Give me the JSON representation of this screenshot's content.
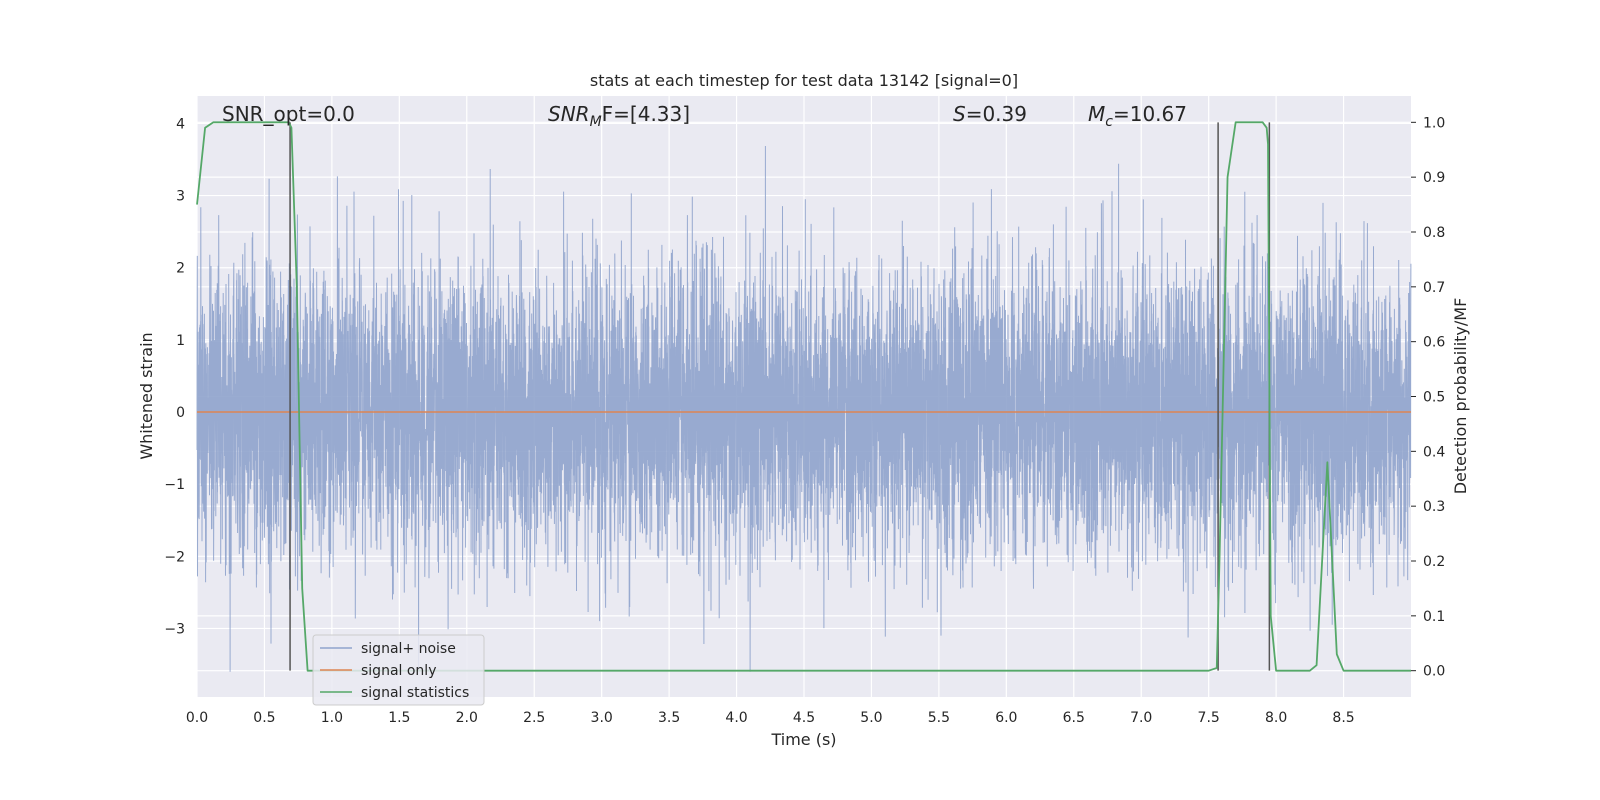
{
  "chart_data": {
    "type": "line",
    "title": "stats at each timestep for test data 13142 [signal=0]",
    "xlabel": "Time (s)",
    "ylabel": "Whitened strain",
    "y2label": "Detection probability/MF",
    "xlim": [
      0,
      9.0
    ],
    "ylim": [
      -3.95,
      4.38
    ],
    "y2lim": [
      -0.048,
      1.048
    ],
    "x_ticks": [
      0.0,
      0.5,
      1.0,
      1.5,
      2.0,
      2.5,
      3.0,
      3.5,
      4.0,
      4.5,
      5.0,
      5.5,
      6.0,
      6.5,
      7.0,
      7.5,
      8.0,
      8.5
    ],
    "x_tick_labels": [
      "0.0",
      "0.5",
      "1.0",
      "1.5",
      "2.0",
      "2.5",
      "3.0",
      "3.5",
      "4.0",
      "4.5",
      "5.0",
      "5.5",
      "6.0",
      "6.5",
      "7.0",
      "7.5",
      "8.0",
      "8.5"
    ],
    "y_ticks": [
      -3,
      -2,
      -1,
      0,
      1,
      2,
      3,
      4
    ],
    "y_tick_labels": [
      "−3",
      "−2",
      "−1",
      "0",
      "1",
      "2",
      "3",
      "4"
    ],
    "y2_ticks": [
      0.0,
      0.1,
      0.2,
      0.3,
      0.4,
      0.5,
      0.6,
      0.7,
      0.8,
      0.9,
      1.0
    ],
    "y2_tick_labels": [
      "0.0",
      "0.1",
      "0.2",
      "0.3",
      "0.4",
      "0.5",
      "0.6",
      "0.7",
      "0.8",
      "0.9",
      "1.0"
    ],
    "grid": true,
    "legend_position": "lower-left",
    "annotations": {
      "snr_opt": "SNR_opt=0.0",
      "snr_mf_base": "SNR",
      "snr_mf_sub": "M",
      "snr_mf_rest": "F=[4.33]",
      "s_sym": "S",
      "s_rest": "=0.39",
      "mc_sym": "M",
      "mc_sub": "c",
      "mc_rest": "=10.67"
    },
    "series": [
      {
        "name": "signal+ noise",
        "color": "#8fa3cc",
        "style": "noise",
        "sample_rate": 1024,
        "amplitude_std": 1.0
      },
      {
        "name": "signal only",
        "color": "#dd8452",
        "x": [
          0.0,
          9.0
        ],
        "y": [
          0.0,
          0.0
        ]
      },
      {
        "name": "signal statistics",
        "color": "#55a868",
        "axis": "right",
        "x": [
          0.0,
          0.06,
          0.12,
          0.2,
          0.3,
          0.4,
          0.5,
          0.6,
          0.68,
          0.7,
          0.74,
          0.78,
          0.82,
          0.9,
          1.5,
          2.5,
          3.5,
          4.5,
          5.5,
          6.5,
          7.0,
          7.5,
          7.56,
          7.58,
          7.64,
          7.7,
          7.75,
          7.8,
          7.85,
          7.9,
          7.93,
          7.94,
          7.96,
          8.0,
          8.06,
          8.15,
          8.25,
          8.3,
          8.38,
          8.45,
          8.5,
          8.6,
          8.7,
          9.0
        ],
        "y": [
          0.85,
          0.99,
          1.0,
          1.0,
          1.0,
          1.0,
          1.0,
          1.0,
          1.0,
          0.99,
          0.7,
          0.15,
          0.0,
          0.0,
          0.0,
          0.0,
          0.0,
          0.0,
          0.0,
          0.0,
          0.0,
          0.0,
          0.005,
          0.2,
          0.9,
          1.0,
          1.0,
          1.0,
          1.0,
          1.0,
          0.99,
          0.96,
          0.1,
          0.0,
          0.0,
          0.0,
          0.0,
          0.01,
          0.38,
          0.03,
          0.0,
          0.0,
          0.0,
          0.0
        ]
      }
    ],
    "vertical_lines": [
      {
        "x": 0.69,
        "color": "#555555"
      },
      {
        "x": 7.57,
        "color": "#555555"
      },
      {
        "x": 7.95,
        "color": "#555555"
      }
    ]
  }
}
